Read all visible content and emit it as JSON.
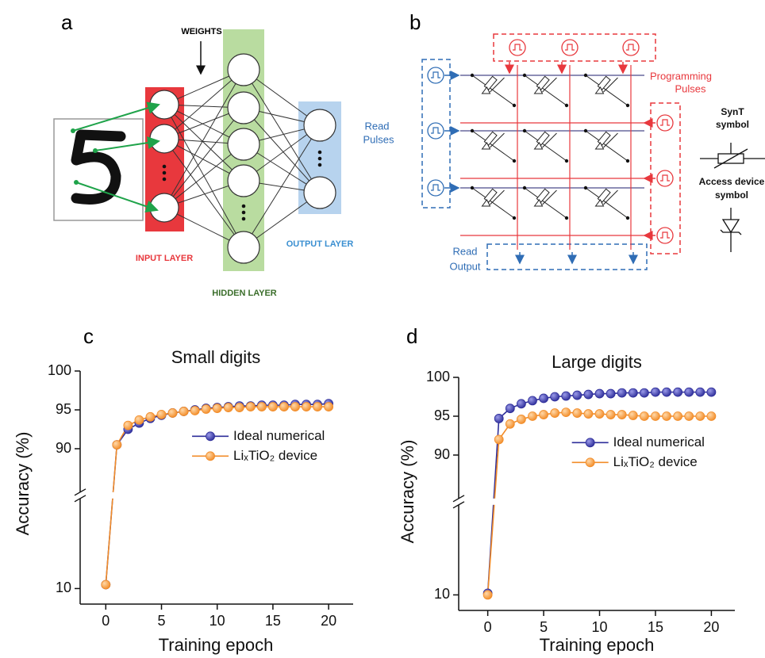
{
  "panel_a": {
    "label": "a",
    "weights": "WEIGHTS",
    "input_layer": "INPUT LAYER",
    "hidden_layer": "HIDDEN LAYER",
    "output_layer": "OUTPUT LAYER"
  },
  "panel_b": {
    "label": "b",
    "programming_pulses": [
      "Programming",
      "Pulses"
    ],
    "read_pulses": [
      "Read",
      "Pulses"
    ],
    "read_output": [
      "Read",
      "Output"
    ],
    "synt_symbol": [
      "SynT",
      "symbol"
    ],
    "access_device_symbol": [
      "Access device",
      "symbol"
    ]
  },
  "chart_data": [
    {
      "type": "line",
      "panel_label": "c",
      "title": "Small digits",
      "x_label": "Training epoch",
      "y_label": "Accuracy (%)",
      "x": [
        0,
        1,
        2,
        3,
        4,
        5,
        6,
        7,
        8,
        9,
        10,
        11,
        12,
        13,
        14,
        15,
        16,
        17,
        18,
        19,
        20
      ],
      "series": [
        {
          "name": "Ideal numerical",
          "color": "#2e2e9a",
          "values": [
            10.5,
            90.5,
            92.5,
            93.3,
            93.9,
            94.3,
            94.6,
            94.8,
            95.0,
            95.2,
            95.3,
            95.4,
            95.5,
            95.5,
            95.6,
            95.6,
            95.6,
            95.7,
            95.7,
            95.7,
            95.8
          ]
        },
        {
          "name": "LiₓTiO₂ device",
          "color": "#f28c28",
          "values": [
            10.5,
            90.5,
            93.0,
            93.7,
            94.1,
            94.4,
            94.6,
            94.8,
            94.9,
            95.1,
            95.2,
            95.3,
            95.3,
            95.4,
            95.4,
            95.4,
            95.4,
            95.4,
            95.4,
            95.4,
            95.4
          ]
        }
      ],
      "xlim": [
        -2.3,
        22.2
      ],
      "xticks": [
        0,
        5,
        10,
        15,
        20
      ],
      "ylim": [
        8,
        100
      ],
      "yticks": [
        10,
        90,
        95,
        100
      ],
      "ybreak": [
        22,
        84
      ],
      "legend": "right",
      "markers": true
    },
    {
      "type": "line",
      "panel_label": "d",
      "title": "Large digits",
      "x_label": "Training epoch",
      "y_label": "Accuracy (%)",
      "x": [
        0,
        1,
        2,
        3,
        4,
        5,
        6,
        7,
        8,
        9,
        10,
        11,
        12,
        13,
        14,
        15,
        16,
        17,
        18,
        19,
        20
      ],
      "series": [
        {
          "name": "Ideal numerical",
          "color": "#2e2e9a",
          "values": [
            10.2,
            94.7,
            96.0,
            96.6,
            97.0,
            97.3,
            97.5,
            97.6,
            97.7,
            97.8,
            97.9,
            97.9,
            98.0,
            98.0,
            98.0,
            98.1,
            98.1,
            98.1,
            98.1,
            98.1,
            98.1
          ]
        },
        {
          "name": "LiₓTiO₂ device",
          "color": "#f28c28",
          "values": [
            10.0,
            92.0,
            94.0,
            94.6,
            95.0,
            95.2,
            95.4,
            95.5,
            95.4,
            95.3,
            95.3,
            95.2,
            95.2,
            95.1,
            95.0,
            95.0,
            95.0,
            95.0,
            95.0,
            95.0,
            95.0
          ]
        }
      ],
      "xlim": [
        -2.6,
        22.1
      ],
      "xticks": [
        0,
        5,
        10,
        15,
        20
      ],
      "ylim": [
        8,
        100
      ],
      "yticks": [
        10,
        90,
        95,
        100
      ],
      "ybreak": [
        22,
        84
      ],
      "legend": "right",
      "markers": true
    }
  ]
}
